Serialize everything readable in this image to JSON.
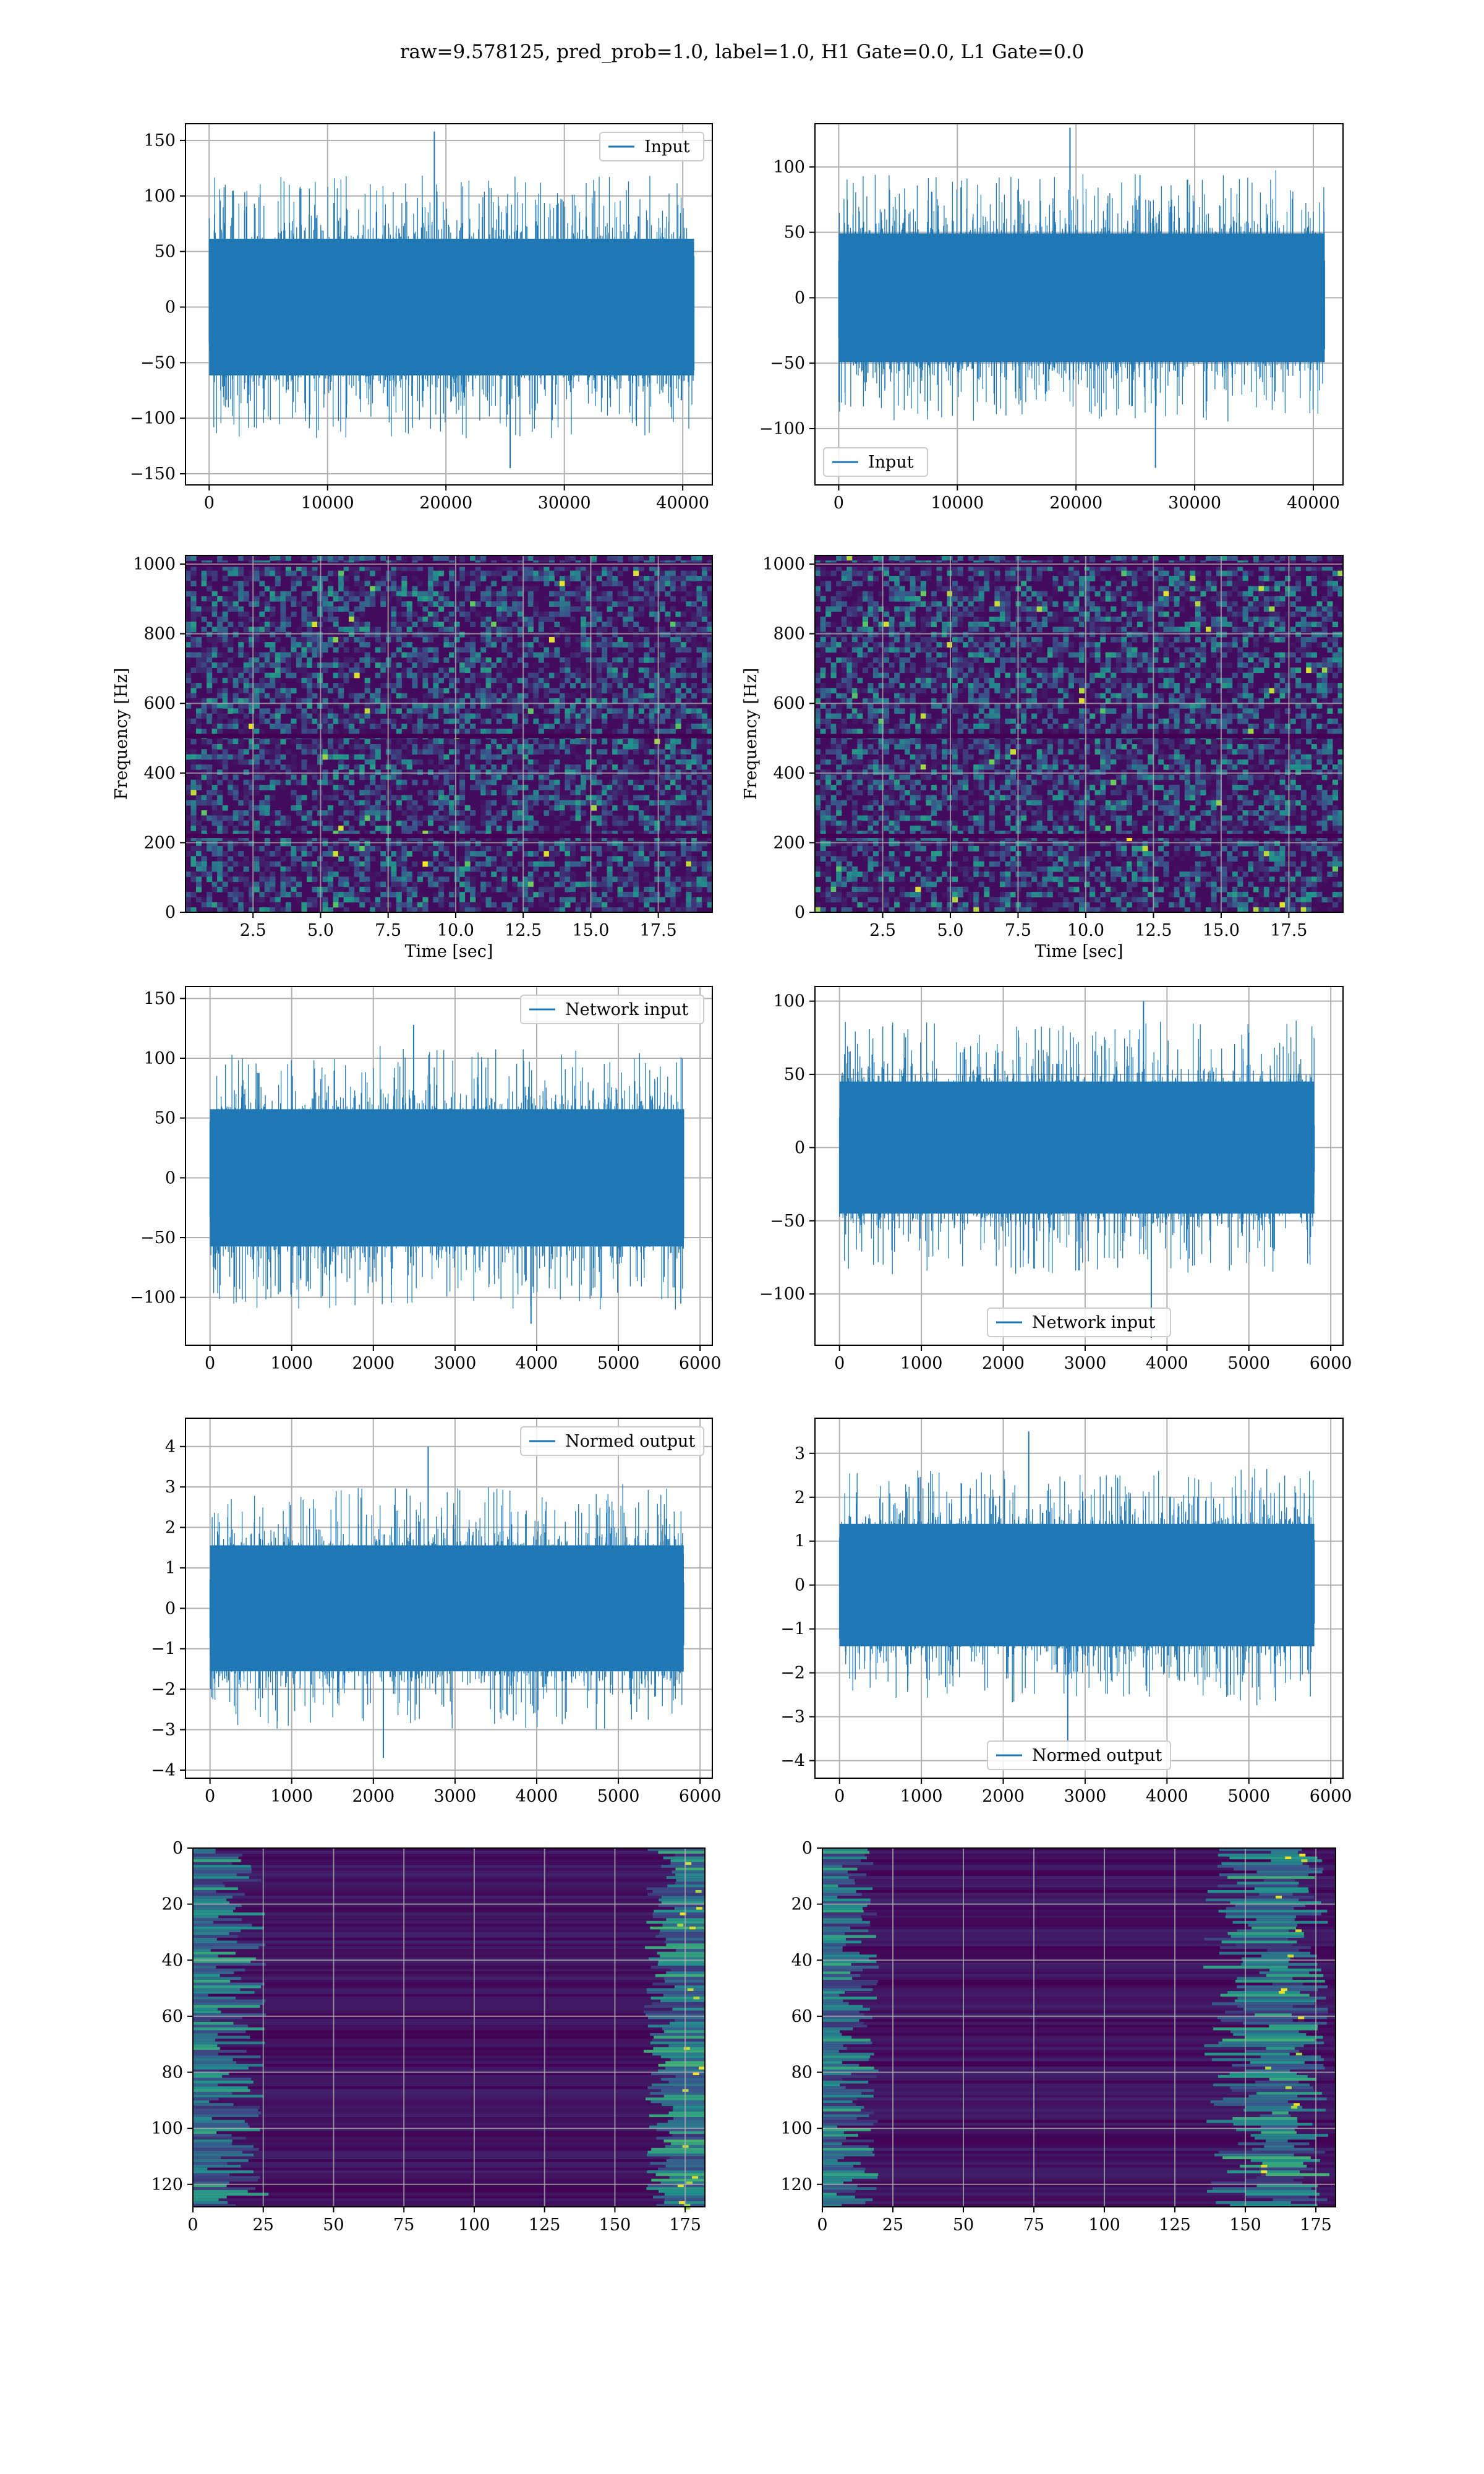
{
  "figure": {
    "suptitle": "raw=9.578125, pred_prob=1.0, label=1.0, H1 Gate=0.0, L1 Gate=0.0"
  },
  "colors": {
    "series": "#1f77b4",
    "grid": "#b0b0b0",
    "spine": "#000000",
    "viridis_low": "#440154",
    "viridis_mid": "#21918c",
    "viridis_high": "#fde725"
  },
  "chart_data": [
    {
      "id": "r1c1",
      "type": "line",
      "detector": "H1",
      "legend": [
        "Input"
      ],
      "legend_loc": "upper right",
      "xlim": [
        -2000,
        42500
      ],
      "ylim": [
        -160,
        165
      ],
      "xticks": [
        0,
        10000,
        20000,
        30000,
        40000
      ],
      "yticks": [
        -150,
        -100,
        -50,
        0,
        50,
        100,
        150
      ],
      "n_samples": 40960,
      "approx_amplitude_band": [
        -75,
        75
      ],
      "approx_extremes": [
        -145,
        158
      ],
      "grid": true
    },
    {
      "id": "r1c2",
      "type": "line",
      "detector": "L1",
      "legend": [
        "Input"
      ],
      "legend_loc": "lower left",
      "xlim": [
        -2000,
        42500
      ],
      "ylim": [
        -143,
        133
      ],
      "xticks": [
        0,
        10000,
        20000,
        30000,
        40000
      ],
      "yticks": [
        -100,
        -50,
        0,
        50,
        100
      ],
      "n_samples": 40960,
      "approx_amplitude_band": [
        -60,
        60
      ],
      "approx_extremes": [
        -130,
        130
      ],
      "grid": true
    },
    {
      "id": "r2c1",
      "type": "heatmap",
      "kind": "spectrogram",
      "xlabel": "Time [sec]",
      "ylabel": "Frequency [Hz]",
      "xlim": [
        0,
        19.5
      ],
      "ylim": [
        0,
        1025
      ],
      "xticks": [
        2.5,
        5.0,
        7.5,
        10.0,
        12.5,
        15.0,
        17.5
      ],
      "xticklabels": [
        "2.5",
        "5.0",
        "7.5",
        "10.0",
        "12.5",
        "15.0",
        "17.5"
      ],
      "yticks": [
        0,
        200,
        400,
        600,
        800,
        1000
      ],
      "colormap": "viridis",
      "grid": true
    },
    {
      "id": "r2c2",
      "type": "heatmap",
      "kind": "spectrogram",
      "xlabel": "Time [sec]",
      "ylabel": "Frequency [Hz]",
      "xlim": [
        0,
        19.5
      ],
      "ylim": [
        0,
        1025
      ],
      "xticks": [
        2.5,
        5.0,
        7.5,
        10.0,
        12.5,
        15.0,
        17.5
      ],
      "xticklabels": [
        "2.5",
        "5.0",
        "7.5",
        "10.0",
        "12.5",
        "15.0",
        "17.5"
      ],
      "yticks": [
        0,
        200,
        400,
        600,
        800,
        1000
      ],
      "colormap": "viridis",
      "grid": true
    },
    {
      "id": "r3c1",
      "type": "line",
      "legend": [
        "Network input"
      ],
      "legend_loc": "upper right",
      "xlim": [
        -300,
        6150
      ],
      "ylim": [
        -140,
        160
      ],
      "xticks": [
        0,
        1000,
        2000,
        3000,
        4000,
        5000,
        6000
      ],
      "yticks": [
        -100,
        -50,
        0,
        50,
        100,
        150
      ],
      "n_samples": 5800,
      "approx_amplitude_band": [
        -70,
        70
      ],
      "approx_extremes": [
        -122,
        128
      ],
      "grid": true
    },
    {
      "id": "r3c2",
      "type": "line",
      "legend": [
        "Network input"
      ],
      "legend_loc": "lower center",
      "xlim": [
        -300,
        6150
      ],
      "ylim": [
        -135,
        110
      ],
      "xticks": [
        0,
        1000,
        2000,
        3000,
        4000,
        5000,
        6000
      ],
      "yticks": [
        -100,
        -50,
        0,
        50,
        100
      ],
      "n_samples": 5800,
      "approx_amplitude_band": [
        -55,
        55
      ],
      "approx_extremes": [
        -130,
        100
      ],
      "grid": true
    },
    {
      "id": "r4c1",
      "type": "line",
      "legend": [
        "Normed output"
      ],
      "legend_loc": "upper right",
      "xlim": [
        -300,
        6150
      ],
      "ylim": [
        -4.2,
        4.7
      ],
      "xticks": [
        0,
        1000,
        2000,
        3000,
        4000,
        5000,
        6000
      ],
      "yticks": [
        -4,
        -3,
        -2,
        -1,
        0,
        1,
        2,
        3,
        4
      ],
      "n_samples": 5800,
      "approx_amplitude_band": [
        -1.9,
        1.9
      ],
      "approx_extremes": [
        -3.7,
        4.0
      ],
      "grid": true
    },
    {
      "id": "r4c2",
      "type": "line",
      "legend": [
        "Normed output"
      ],
      "legend_loc": "lower center",
      "xlim": [
        -300,
        6150
      ],
      "ylim": [
        -4.4,
        3.8
      ],
      "xticks": [
        0,
        1000,
        2000,
        3000,
        4000,
        5000,
        6000
      ],
      "yticks": [
        -4,
        -3,
        -2,
        -1,
        0,
        1,
        2,
        3
      ],
      "n_samples": 5800,
      "approx_amplitude_band": [
        -1.7,
        1.7
      ],
      "approx_extremes": [
        -3.9,
        3.5
      ],
      "grid": true
    },
    {
      "id": "r5c1",
      "type": "heatmap",
      "kind": "feature map",
      "xlim": [
        0,
        182
      ],
      "ylim": [
        128,
        0
      ],
      "xticks": [
        0,
        25,
        50,
        75,
        100,
        125,
        150,
        175
      ],
      "yticks": [
        0,
        20,
        40,
        60,
        80,
        100,
        120
      ],
      "colormap": "viridis",
      "grid": true,
      "bright_regions": [
        "left edge x 0-25",
        "right edge x 160-182"
      ]
    },
    {
      "id": "r5c2",
      "type": "heatmap",
      "kind": "feature map",
      "xlim": [
        0,
        182
      ],
      "ylim": [
        128,
        0
      ],
      "xticks": [
        0,
        25,
        50,
        75,
        100,
        125,
        150,
        175
      ],
      "yticks": [
        0,
        20,
        40,
        60,
        80,
        100,
        120
      ],
      "colormap": "viridis",
      "grid": true,
      "bright_regions": [
        "left edge x 0-20",
        "right region x 135-180"
      ]
    }
  ]
}
